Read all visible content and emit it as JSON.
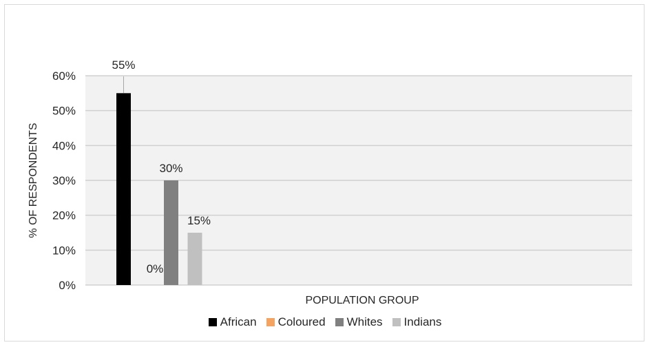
{
  "chart_data": {
    "type": "bar",
    "categories": [
      "African",
      "Coloured",
      "Whites",
      "Indians"
    ],
    "values": [
      55,
      0,
      30,
      15
    ],
    "data_labels": [
      "55%",
      "0%",
      "30%",
      "15%"
    ],
    "colors": [
      "#000000",
      "#f4a460",
      "#808080",
      "#c0c0c0"
    ],
    "ylabel": "% OF RESPONDENTS",
    "xlabel": "POPULATION GROUP",
    "ylim": [
      0,
      60
    ],
    "yticks": [
      "0%",
      "10%",
      "20%",
      "30%",
      "40%",
      "50%",
      "60%"
    ],
    "grid": true,
    "plot_background": "#f2f2f2",
    "legend": "bottom"
  }
}
